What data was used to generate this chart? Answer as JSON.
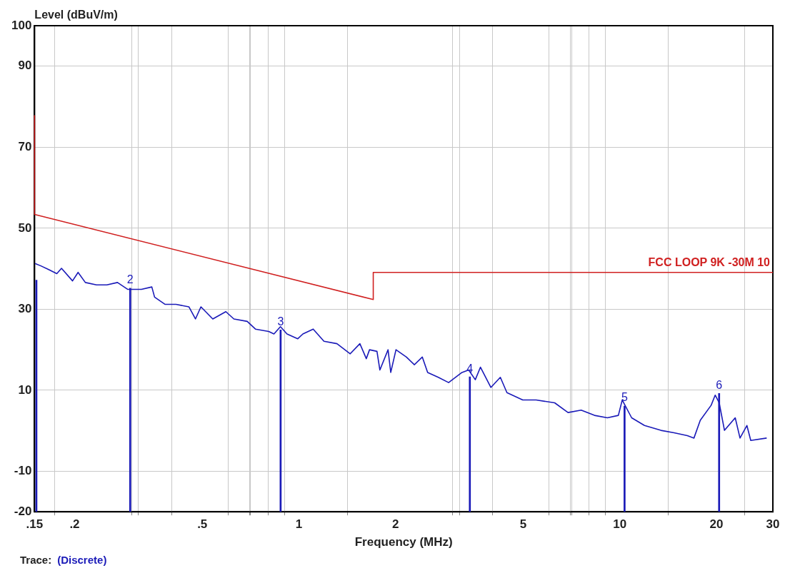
{
  "chart_data": {
    "type": "line",
    "xlabel": "Frequency (MHz)",
    "ylabel": "Level (dBuV/m)",
    "log": "x",
    "grid": true,
    "legend": false,
    "marker": "none",
    "xlim": [
      0.15,
      30
    ],
    "ylim": [
      -20,
      100
    ],
    "xticks": [
      {
        "value": 0.15,
        "label": ".15"
      },
      {
        "value": 0.2,
        "label": ".2"
      },
      {
        "value": 0.3,
        "label": null
      },
      {
        "value": 0.4,
        "label": null
      },
      {
        "value": 0.5,
        "label": ".5"
      },
      {
        "value": 0.6,
        "label": null
      },
      {
        "value": 0.7,
        "label": null
      },
      {
        "value": 0.8,
        "label": null
      },
      {
        "value": 0.9,
        "label": null
      },
      1,
      2,
      {
        "value": 3,
        "label": null
      },
      {
        "value": 4,
        "label": null
      },
      5,
      {
        "value": 6,
        "label": null
      },
      {
        "value": 7,
        "label": null
      },
      {
        "value": 8,
        "label": null
      },
      {
        "value": 9,
        "label": null
      },
      10,
      20,
      30
    ],
    "yticks": [
      -20,
      -10,
      10,
      30,
      50,
      70,
      90,
      100
    ],
    "annotations": [
      "Trace:",
      "(Discrete)",
      {
        "text": "2",
        "x": 0.298,
        "y": 35.2
      },
      {
        "text": "3",
        "x": 0.877,
        "y": 24.9
      },
      {
        "text": "4",
        "x": 3.41,
        "y": 13.3
      },
      {
        "text": "5",
        "x": 10.35,
        "y": 6.1
      },
      {
        "text": "6",
        "x": 20.4,
        "y": 9.2
      }
    ],
    "series": [
      {
        "color": "#1a1ab8",
        "x": [
          0.1505,
          0.157,
          0.166,
          0.176,
          0.182,
          0.197,
          0.205,
          0.216,
          0.234,
          0.252,
          0.272,
          0.293,
          0.323,
          0.348,
          0.355,
          0.383,
          0.414,
          0.454,
          0.476,
          0.495,
          0.539,
          0.592,
          0.627,
          0.69,
          0.732,
          0.805,
          0.836,
          0.876,
          0.918,
          0.991,
          1.029,
          1.108,
          1.197,
          1.314,
          1.445,
          1.549,
          1.622,
          1.66,
          1.751,
          1.788,
          1.896,
          1.933,
          2.007,
          2.163,
          2.29,
          2.424,
          2.519,
          2.719,
          2.928,
          3.223,
          3.381,
          3.546,
          3.68,
          3.965,
          4.244,
          4.45,
          4.984,
          5.485,
          6.268,
          6.898,
          7.58,
          8.34,
          9.15,
          9.9,
          10.18,
          10.89,
          11.94,
          13.43,
          14.77,
          16.24,
          17.03,
          17.82,
          19.27,
          19.83,
          20.41,
          21.2,
          22.9,
          23.7,
          24.9,
          25.6,
          28.7
        ],
        "values": [
          41.3,
          40.7,
          39.8,
          38.8,
          40.1,
          37.0,
          39.1,
          36.6,
          36.0,
          36.0,
          36.6,
          34.9,
          34.9,
          35.5,
          33.0,
          31.2,
          31.2,
          30.6,
          27.6,
          30.6,
          27.6,
          29.4,
          27.6,
          27.0,
          25.1,
          24.5,
          23.9,
          25.7,
          23.9,
          22.7,
          23.9,
          25.1,
          22.1,
          21.5,
          19.0,
          21.5,
          17.8,
          20.0,
          19.6,
          15.0,
          20.0,
          14.4,
          20.0,
          18.2,
          16.3,
          18.2,
          14.4,
          13.2,
          11.9,
          14.4,
          15.0,
          12.6,
          15.7,
          10.7,
          13.2,
          9.4,
          7.6,
          7.6,
          6.9,
          4.5,
          5.1,
          3.8,
          3.2,
          3.8,
          7.6,
          3.2,
          1.3,
          0.1,
          -0.5,
          -1.2,
          -1.8,
          2.6,
          6.3,
          8.8,
          6.9,
          0.1,
          3.2,
          -1.8,
          1.3,
          -2.4,
          -1.8
        ]
      },
      {
        "name": "FCC LOOP 9K -30M 10",
        "color": "#d02020",
        "x": [
          0.15,
          0.15,
          1.705,
          1.705,
          30
        ],
        "values": [
          77.8,
          53.4,
          32.4,
          39.1,
          39.1
        ]
      },
      {
        "type": "bar",
        "color": "#1a1ab8",
        "x": [
          0.152,
          0.298,
          0.877,
          3.41,
          10.35,
          20.4
        ],
        "base": [
          -20,
          -20,
          -20,
          -20,
          -20,
          -20
        ],
        "values": [
          57.2,
          55.2,
          44.9,
          33.3,
          26.1,
          29.2
        ]
      }
    ]
  }
}
